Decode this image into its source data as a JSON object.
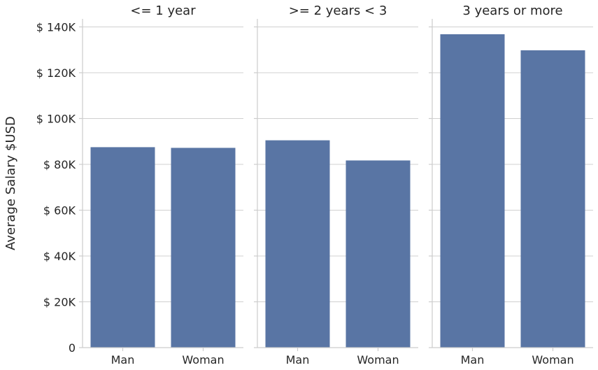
{
  "chart_data": {
    "type": "bar",
    "ylabel": "Average Salary $USD",
    "xlabel": "",
    "ylim": [
      0,
      143500
    ],
    "yticks": [
      {
        "value": 0,
        "label": "0"
      },
      {
        "value": 20000,
        "label": "$ 20K"
      },
      {
        "value": 40000,
        "label": "$ 40K"
      },
      {
        "value": 60000,
        "label": "$ 60K"
      },
      {
        "value": 80000,
        "label": "$ 80K"
      },
      {
        "value": 100000,
        "label": "$ 100K"
      },
      {
        "value": 120000,
        "label": "$ 120K"
      },
      {
        "value": 140000,
        "label": "$ 140K"
      }
    ],
    "grid": true,
    "bar_color": "#5975a4",
    "panels": [
      {
        "title": "<= 1 year",
        "categories": [
          "Man",
          "Woman"
        ],
        "values": [
          87500,
          87200
        ]
      },
      {
        "title": ">= 2 years < 3",
        "categories": [
          "Man",
          "Woman"
        ],
        "values": [
          90500,
          81700
        ]
      },
      {
        "title": "3 years or more",
        "categories": [
          "Man",
          "Woman"
        ],
        "values": [
          136800,
          129800
        ]
      }
    ]
  }
}
